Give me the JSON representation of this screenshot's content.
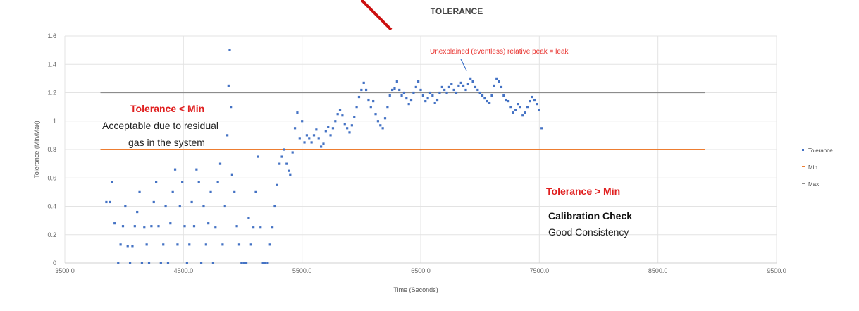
{
  "chart_data": {
    "type": "scatter",
    "title": "TOLERANCE",
    "xlabel": "Time (Seconds)",
    "ylabel": "Tolerance (Min/Max)",
    "xlim": [
      3500,
      9500
    ],
    "ylim": [
      0,
      1.6
    ],
    "x_tick_labels": [
      "3500.0",
      "4500.0",
      "5500.0",
      "6500.0",
      "7500.0",
      "8500.0",
      "9500.0"
    ],
    "x_ticks": [
      3500,
      4500,
      5500,
      6500,
      7500,
      8500,
      9500
    ],
    "y_tick_labels": [
      "0",
      "0.2",
      "0.4",
      "0.6",
      "0.8",
      "1",
      "1.2",
      "1.4",
      "1.6"
    ],
    "y_ticks": [
      0,
      0.2,
      0.4,
      0.6,
      0.8,
      1.0,
      1.2,
      1.4,
      1.6
    ],
    "grid": true,
    "legend_position": "right",
    "colors": {
      "tolerance": "#4472c4",
      "min": "#ed7d31",
      "max": "#8c8c8c",
      "annotation_red": "#e02020"
    },
    "series": [
      {
        "name": "Tolerance",
        "points": [
          [
            3850,
            0.43
          ],
          [
            3880,
            0.43
          ],
          [
            3900,
            0.57
          ],
          [
            3920,
            0.28
          ],
          [
            3950,
            0
          ],
          [
            3970,
            0.13
          ],
          [
            3990,
            0.26
          ],
          [
            4010,
            0.4
          ],
          [
            4030,
            0.12
          ],
          [
            4050,
            0
          ],
          [
            4070,
            0.12
          ],
          [
            4090,
            0.26
          ],
          [
            4110,
            0.36
          ],
          [
            4130,
            0.5
          ],
          [
            4150,
            0
          ],
          [
            4170,
            0.25
          ],
          [
            4190,
            0.13
          ],
          [
            4210,
            0
          ],
          [
            4230,
            0.26
          ],
          [
            4250,
            0.43
          ],
          [
            4270,
            0.57
          ],
          [
            4290,
            0.26
          ],
          [
            4310,
            0
          ],
          [
            4330,
            0.13
          ],
          [
            4350,
            0.4
          ],
          [
            4370,
            0
          ],
          [
            4390,
            0.28
          ],
          [
            4410,
            0.5
          ],
          [
            4430,
            0.66
          ],
          [
            4450,
            0.13
          ],
          [
            4470,
            0.4
          ],
          [
            4490,
            0.57
          ],
          [
            4510,
            0.26
          ],
          [
            4530,
            0
          ],
          [
            4550,
            0.13
          ],
          [
            4570,
            0.43
          ],
          [
            4590,
            0.26
          ],
          [
            4610,
            0.66
          ],
          [
            4630,
            0.57
          ],
          [
            4650,
            0
          ],
          [
            4670,
            0.4
          ],
          [
            4690,
            0.13
          ],
          [
            4710,
            0.28
          ],
          [
            4730,
            0.5
          ],
          [
            4750,
            0
          ],
          [
            4770,
            0.25
          ],
          [
            4790,
            0.57
          ],
          [
            4810,
            0.7
          ],
          [
            4830,
            0.13
          ],
          [
            4850,
            0.4
          ],
          [
            4870,
            0.9
          ],
          [
            4880,
            1.25
          ],
          [
            4890,
            1.5
          ],
          [
            4900,
            1.1
          ],
          [
            4910,
            0.62
          ],
          [
            4930,
            0.5
          ],
          [
            4950,
            0.26
          ],
          [
            4970,
            0.13
          ],
          [
            4990,
            0
          ],
          [
            5010,
            0
          ],
          [
            5030,
            0
          ],
          [
            5050,
            0.32
          ],
          [
            5070,
            0.13
          ],
          [
            5090,
            0.25
          ],
          [
            5110,
            0.5
          ],
          [
            5130,
            0.75
          ],
          [
            5150,
            0.25
          ],
          [
            5170,
            0
          ],
          [
            5190,
            0
          ],
          [
            5210,
            0
          ],
          [
            5230,
            0.13
          ],
          [
            5250,
            0.25
          ],
          [
            5270,
            0.4
          ],
          [
            5290,
            0.55
          ],
          [
            5310,
            0.7
          ],
          [
            5330,
            0.75
          ],
          [
            5350,
            0.8
          ],
          [
            5370,
            0.7
          ],
          [
            5390,
            0.65
          ],
          [
            5400,
            0.62
          ],
          [
            5420,
            0.78
          ],
          [
            5440,
            0.95
          ],
          [
            5460,
            1.06
          ],
          [
            5480,
            0.88
          ],
          [
            5500,
            1.0
          ],
          [
            5520,
            0.85
          ],
          [
            5540,
            0.9
          ],
          [
            5560,
            0.88
          ],
          [
            5580,
            0.85
          ],
          [
            5600,
            0.9
          ],
          [
            5620,
            0.94
          ],
          [
            5640,
            0.88
          ],
          [
            5660,
            0.82
          ],
          [
            5680,
            0.84
          ],
          [
            5700,
            0.93
          ],
          [
            5720,
            0.96
          ],
          [
            5740,
            0.9
          ],
          [
            5760,
            0.95
          ],
          [
            5780,
            1.0
          ],
          [
            5800,
            1.05
          ],
          [
            5820,
            1.08
          ],
          [
            5840,
            1.04
          ],
          [
            5860,
            0.98
          ],
          [
            5880,
            0.95
          ],
          [
            5900,
            0.92
          ],
          [
            5920,
            0.97
          ],
          [
            5940,
            1.03
          ],
          [
            5960,
            1.1
          ],
          [
            5980,
            1.17
          ],
          [
            6000,
            1.22
          ],
          [
            6020,
            1.27
          ],
          [
            6040,
            1.22
          ],
          [
            6060,
            1.15
          ],
          [
            6080,
            1.1
          ],
          [
            6100,
            1.14
          ],
          [
            6120,
            1.05
          ],
          [
            6140,
            1.0
          ],
          [
            6160,
            0.97
          ],
          [
            6180,
            0.95
          ],
          [
            6200,
            1.02
          ],
          [
            6220,
            1.1
          ],
          [
            6240,
            1.18
          ],
          [
            6260,
            1.22
          ],
          [
            6280,
            1.23
          ],
          [
            6300,
            1.28
          ],
          [
            6320,
            1.22
          ],
          [
            6340,
            1.18
          ],
          [
            6360,
            1.2
          ],
          [
            6380,
            1.16
          ],
          [
            6400,
            1.12
          ],
          [
            6420,
            1.15
          ],
          [
            6440,
            1.2
          ],
          [
            6460,
            1.24
          ],
          [
            6480,
            1.28
          ],
          [
            6500,
            1.22
          ],
          [
            6520,
            1.18
          ],
          [
            6540,
            1.14
          ],
          [
            6560,
            1.16
          ],
          [
            6580,
            1.2
          ],
          [
            6600,
            1.18
          ],
          [
            6620,
            1.13
          ],
          [
            6640,
            1.15
          ],
          [
            6660,
            1.2
          ],
          [
            6680,
            1.24
          ],
          [
            6700,
            1.22
          ],
          [
            6720,
            1.2
          ],
          [
            6740,
            1.24
          ],
          [
            6760,
            1.26
          ],
          [
            6780,
            1.22
          ],
          [
            6800,
            1.2
          ],
          [
            6820,
            1.25
          ],
          [
            6840,
            1.27
          ],
          [
            6860,
            1.25
          ],
          [
            6880,
            1.22
          ],
          [
            6900,
            1.26
          ],
          [
            6920,
            1.3
          ],
          [
            6940,
            1.28
          ],
          [
            6960,
            1.24
          ],
          [
            6980,
            1.22
          ],
          [
            7000,
            1.2
          ],
          [
            7020,
            1.18
          ],
          [
            7040,
            1.16
          ],
          [
            7060,
            1.14
          ],
          [
            7080,
            1.13
          ],
          [
            7100,
            1.18
          ],
          [
            7120,
            1.25
          ],
          [
            7140,
            1.3
          ],
          [
            7160,
            1.28
          ],
          [
            7180,
            1.24
          ],
          [
            7200,
            1.18
          ],
          [
            7220,
            1.15
          ],
          [
            7240,
            1.14
          ],
          [
            7260,
            1.1
          ],
          [
            7280,
            1.06
          ],
          [
            7300,
            1.08
          ],
          [
            7320,
            1.12
          ],
          [
            7340,
            1.1
          ],
          [
            7360,
            1.04
          ],
          [
            7380,
            1.06
          ],
          [
            7400,
            1.1
          ],
          [
            7420,
            1.14
          ],
          [
            7440,
            1.17
          ],
          [
            7460,
            1.15
          ],
          [
            7480,
            1.12
          ],
          [
            7500,
            1.08
          ],
          [
            7520,
            0.95
          ]
        ]
      },
      {
        "name": "Min",
        "points": [
          [
            3800,
            0.8
          ],
          [
            8900,
            0.8
          ]
        ]
      },
      {
        "name": "Max",
        "points": [
          [
            3800,
            1.2
          ],
          [
            8900,
            1.2
          ]
        ]
      }
    ],
    "annotations": {
      "peak_note": "Unexplained (eventless) relative peak = leak",
      "below_min_title": "Tolerance < Min",
      "below_min_line1": "Acceptable due to residual",
      "below_min_line2": "gas in the system",
      "above_min_title": "Tolerance > Min",
      "above_min_line1": "Calibration Check",
      "above_min_line2": "Good Consistency"
    }
  }
}
